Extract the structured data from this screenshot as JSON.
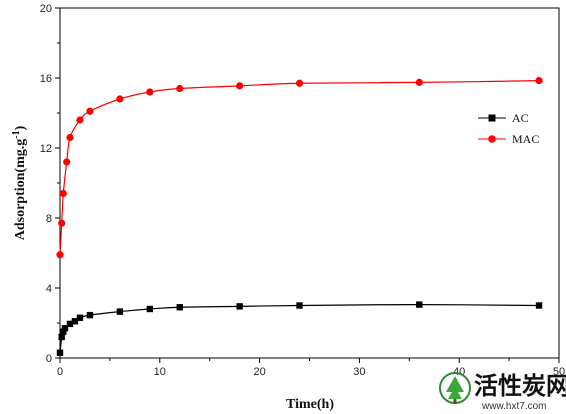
{
  "chart_data": {
    "type": "line",
    "title": "",
    "xlabel": "Time(h)",
    "ylabel": "Adsorption(mg.g",
    "ylabel_sup": "-1",
    "ylabel_close": ")",
    "xlim": [
      0,
      50
    ],
    "ylim": [
      0,
      20
    ],
    "xticks": [
      0,
      10,
      20,
      30,
      40,
      50
    ],
    "yticks": [
      0,
      4,
      8,
      12,
      16,
      20
    ],
    "grid": false,
    "legend_position": "right",
    "series": [
      {
        "name": "AC",
        "color": "#000000",
        "marker": "square",
        "x": [
          0,
          0.17,
          0.33,
          0.5,
          1,
          1.5,
          2,
          3,
          6,
          9,
          12,
          18,
          24,
          36,
          48
        ],
        "y": [
          0.3,
          1.2,
          1.5,
          1.7,
          1.95,
          2.1,
          2.3,
          2.45,
          2.65,
          2.8,
          2.9,
          2.95,
          3.0,
          3.05,
          3.0
        ]
      },
      {
        "name": "MAC",
        "color": "#ff0000",
        "marker": "circle",
        "x": [
          0,
          0.17,
          0.33,
          0.67,
          1,
          2,
          3,
          6,
          9,
          12,
          18,
          24,
          36,
          48
        ],
        "y": [
          5.9,
          7.7,
          9.4,
          11.2,
          12.6,
          13.6,
          14.1,
          14.8,
          15.2,
          15.4,
          15.55,
          15.7,
          15.75,
          15.85
        ]
      }
    ]
  },
  "watermark": {
    "logo_icon": "tree-globe-logo",
    "brand": "活性炭网",
    "url": "www.hxt7.com"
  }
}
